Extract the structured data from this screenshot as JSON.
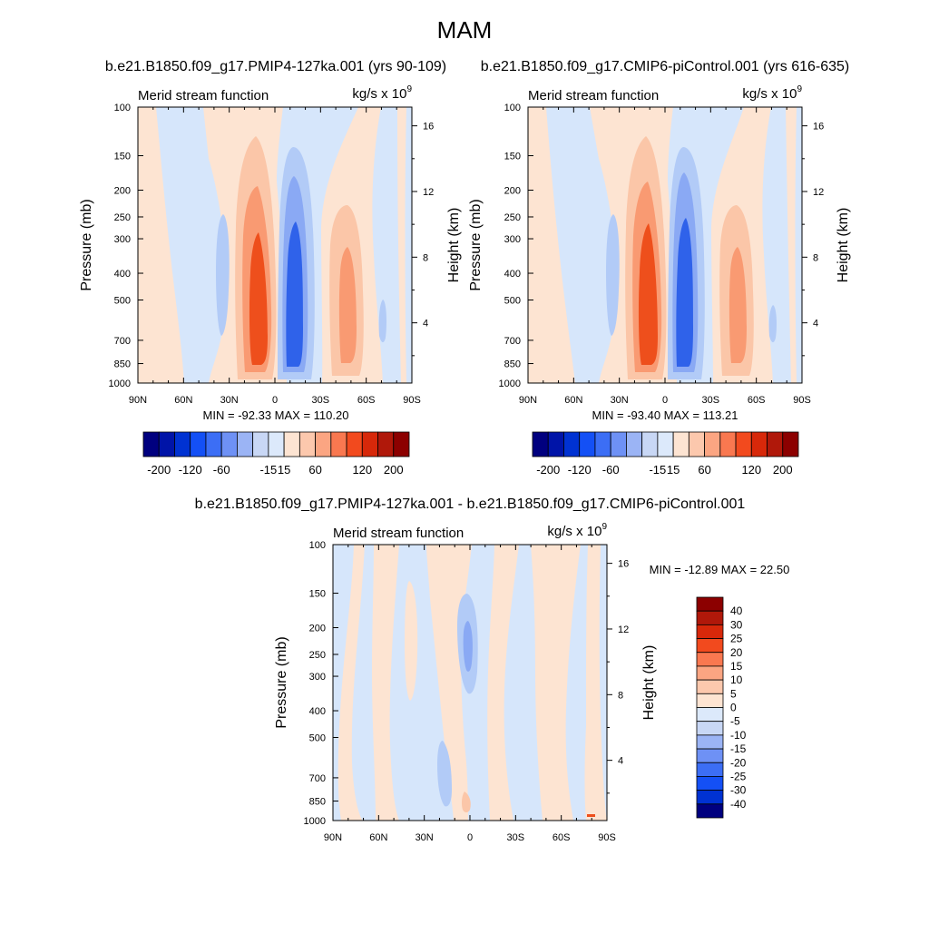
{
  "main_title": "MAM",
  "panels": [
    {
      "id": "left",
      "case_title": "b.e21.B1850.f09_g17.PMIP4-127ka.001 (yrs 90-109)",
      "var_label": "Merid stream function",
      "units_label": "kg/s x 10",
      "units_exp": "9",
      "y_left_label": "Pressure (mb)",
      "y_right_label": "Height (km)",
      "stats": "MIN = -92.33  MAX = 110.20"
    },
    {
      "id": "right",
      "case_title": "b.e21.B1850.f09_g17.CMIP6-piControl.001 (yrs 616-635)",
      "var_label": "Merid stream function",
      "units_label": "kg/s x 10",
      "units_exp": "9",
      "y_left_label": "Pressure (mb)",
      "y_right_label": "Height (km)",
      "stats": "MIN = -93.40  MAX = 113.21"
    },
    {
      "id": "diff",
      "case_title": "b.e21.B1850.f09_g17.PMIP4-127ka.001 - b.e21.B1850.f09_g17.CMIP6-piControl.001",
      "var_label": "Merid stream function",
      "units_label": "kg/s x 10",
      "units_exp": "9",
      "y_left_label": "Pressure (mb)",
      "y_right_label": "Height (km)",
      "stats": "MIN = -12.89  MAX =  22.50"
    }
  ],
  "colors": {
    "scale": [
      "#00007f",
      "#0014a8",
      "#0032d2",
      "#1450f5",
      "#3c6ef5",
      "#6e91f5",
      "#9bb4f5",
      "#c8d7f5",
      "#dce9fb",
      "#fde4d2",
      "#fcc8ad",
      "#fba582",
      "#f97850",
      "#f24a1e",
      "#d7280a",
      "#b0180a",
      "#8c0000"
    ],
    "pos1": "#fde4d2",
    "pos2": "#fbc6a8",
    "pos3": "#f99a72",
    "pos4": "#f4683a",
    "pos5": "#ee4f1c",
    "neg1": "#d6e6fb",
    "neg2": "#b2cbf7",
    "neg3": "#8aa9f4",
    "neg4": "#5a86ee",
    "neg5": "#2f62ea"
  },
  "chart_data": [
    {
      "type": "heatmap",
      "name": "left-panel",
      "title": "b.e21.B1850.f09_g17.PMIP4-127ka.001 (yrs 90-109)",
      "xlabel": "",
      "ylabel": "Pressure (mb)",
      "y2label": "Height (km)",
      "x_ticks": [
        "90N",
        "60N",
        "30N",
        "0",
        "30S",
        "60S",
        "90S"
      ],
      "x_values": [
        90,
        60,
        30,
        0,
        -30,
        -60,
        -90
      ],
      "y_ticks": [
        "100",
        "150",
        "200",
        "250",
        "300",
        "400",
        "500",
        "700",
        "850",
        "1000"
      ],
      "y_values": [
        100,
        150,
        200,
        250,
        300,
        400,
        500,
        700,
        850,
        1000
      ],
      "y2_ticks": [
        "16",
        "12",
        "8",
        "4"
      ],
      "y2_values": [
        16,
        12,
        8,
        4
      ],
      "min": -92.33,
      "max": 110.2,
      "units": "kg/s x 10^9",
      "colorbar_labels": [
        "-200",
        "-120",
        "-60",
        "-15",
        "15",
        "60",
        "120",
        "200"
      ]
    },
    {
      "type": "heatmap",
      "name": "right-panel",
      "title": "b.e21.B1850.f09_g17.CMIP6-piControl.001 (yrs 616-635)",
      "xlabel": "",
      "ylabel": "Pressure (mb)",
      "y2label": "Height (km)",
      "x_ticks": [
        "90N",
        "60N",
        "30N",
        "0",
        "30S",
        "60S",
        "90S"
      ],
      "x_values": [
        90,
        60,
        30,
        0,
        -30,
        -60,
        -90
      ],
      "y_ticks": [
        "100",
        "150",
        "200",
        "250",
        "300",
        "400",
        "500",
        "700",
        "850",
        "1000"
      ],
      "y_values": [
        100,
        150,
        200,
        250,
        300,
        400,
        500,
        700,
        850,
        1000
      ],
      "y2_ticks": [
        "16",
        "12",
        "8",
        "4"
      ],
      "y2_values": [
        16,
        12,
        8,
        4
      ],
      "min": -93.4,
      "max": 113.21,
      "units": "kg/s x 10^9",
      "colorbar_labels": [
        "-200",
        "-120",
        "-60",
        "-15",
        "15",
        "60",
        "120",
        "200"
      ]
    },
    {
      "type": "heatmap",
      "name": "difference-panel",
      "title": "b.e21.B1850.f09_g17.PMIP4-127ka.001 - b.e21.B1850.f09_g17.CMIP6-piControl.001",
      "xlabel": "",
      "ylabel": "Pressure (mb)",
      "y2label": "Height (km)",
      "x_ticks": [
        "90N",
        "60N",
        "30N",
        "0",
        "30S",
        "60S",
        "90S"
      ],
      "x_values": [
        90,
        60,
        30,
        0,
        -30,
        -60,
        -90
      ],
      "y_ticks": [
        "100",
        "150",
        "200",
        "250",
        "300",
        "400",
        "500",
        "700",
        "850",
        "1000"
      ],
      "y_values": [
        100,
        150,
        200,
        250,
        300,
        400,
        500,
        700,
        850,
        1000
      ],
      "y2_ticks": [
        "16",
        "12",
        "8",
        "4"
      ],
      "y2_values": [
        16,
        12,
        8,
        4
      ],
      "min": -12.89,
      "max": 22.5,
      "units": "kg/s x 10^9",
      "colorbar_labels": [
        "40",
        "30",
        "25",
        "20",
        "15",
        "10",
        "5",
        "0",
        "-5",
        "-10",
        "-15",
        "-20",
        "-25",
        "-30",
        "-40"
      ],
      "colorbar_colors": [
        "#8c0000",
        "#b0180a",
        "#d7280a",
        "#f24a1e",
        "#f97850",
        "#fba582",
        "#fcc8ad",
        "#fde4d2",
        "#dce9fb",
        "#c8d7f5",
        "#9bb4f5",
        "#6e91f5",
        "#3c6ef5",
        "#1450f5",
        "#0032d2",
        "#00007f"
      ]
    }
  ]
}
